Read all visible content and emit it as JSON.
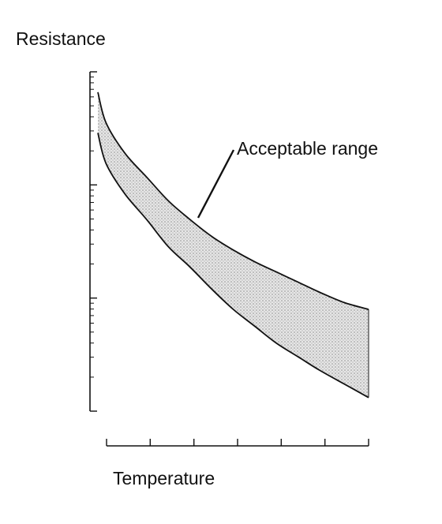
{
  "chart_data": {
    "type": "area",
    "title": "",
    "xlabel": "Temperature",
    "ylabel": "Resistance",
    "x_scale": "linear",
    "y_scale": "log",
    "x_tick_count": 7,
    "y_decades": 3,
    "x_tick_labels": [],
    "y_tick_labels": [],
    "grid": false,
    "band": {
      "name": "Acceptable range",
      "upper": [
        0.94,
        0.85,
        0.76,
        0.69,
        0.62,
        0.565,
        0.515,
        0.475,
        0.44,
        0.41,
        0.38,
        0.35,
        0.32,
        0.3
      ],
      "lower": [
        0.82,
        0.73,
        0.64,
        0.565,
        0.485,
        0.425,
        0.36,
        0.3,
        0.25,
        0.2,
        0.16,
        0.12,
        0.08,
        0.04
      ]
    },
    "x": [
      0.0,
      0.03,
      0.1,
      0.18,
      0.26,
      0.34,
      0.42,
      0.5,
      0.58,
      0.66,
      0.74,
      0.82,
      0.91,
      1.0
    ],
    "annotations": [
      {
        "text": "Acceptable range"
      }
    ],
    "colors": {
      "ink": "#111111",
      "band_fill": "#c9c9c9",
      "background": "#ffffff"
    }
  }
}
